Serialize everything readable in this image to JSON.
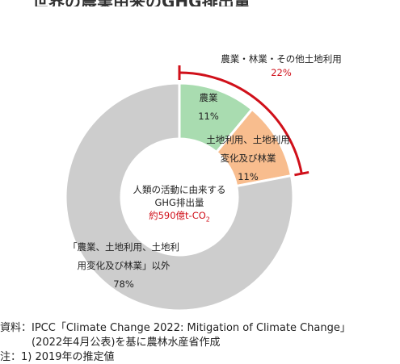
{
  "title": "世界の農業由来のGHG排出量",
  "chart_data": {
    "type": "pie",
    "variant": "donut",
    "slices": [
      {
        "label": "農業",
        "value": 11,
        "display": "11%",
        "color": "#a9dcb0"
      },
      {
        "label": "土地利用、土地利用変化及び林業",
        "value": 11,
        "display": "11%",
        "color": "#f8bd8e"
      },
      {
        "label": "「農業、土地利用、土地利用変化及び林業」以外",
        "value": 78,
        "display": "78%",
        "color": "#cdcdcd"
      }
    ],
    "center_text": {
      "line1": "人類の活動に由来する",
      "line2": "GHG排出量",
      "amount": "約590億t-CO",
      "amount_sub": "2"
    },
    "bracket": {
      "label": "農業・林業・その他土地利用",
      "value": "22%",
      "color": "#d0101a"
    }
  },
  "labels": {
    "ag_name": "農業",
    "lu_line1": "土地利用、土地利用",
    "lu_line2": "変化及び林業",
    "other_line1": "「農業、土地利用、土地利",
    "other_line2": "用変化及び林業」以外"
  },
  "source": {
    "line1": "資料：IPCC「Climate Change 2022: Mitigation of Climate Change」",
    "line2": "　　　(2022年4月公表)を基に農林水産省作成",
    "line3": "注：1) 2019年の推定値"
  }
}
